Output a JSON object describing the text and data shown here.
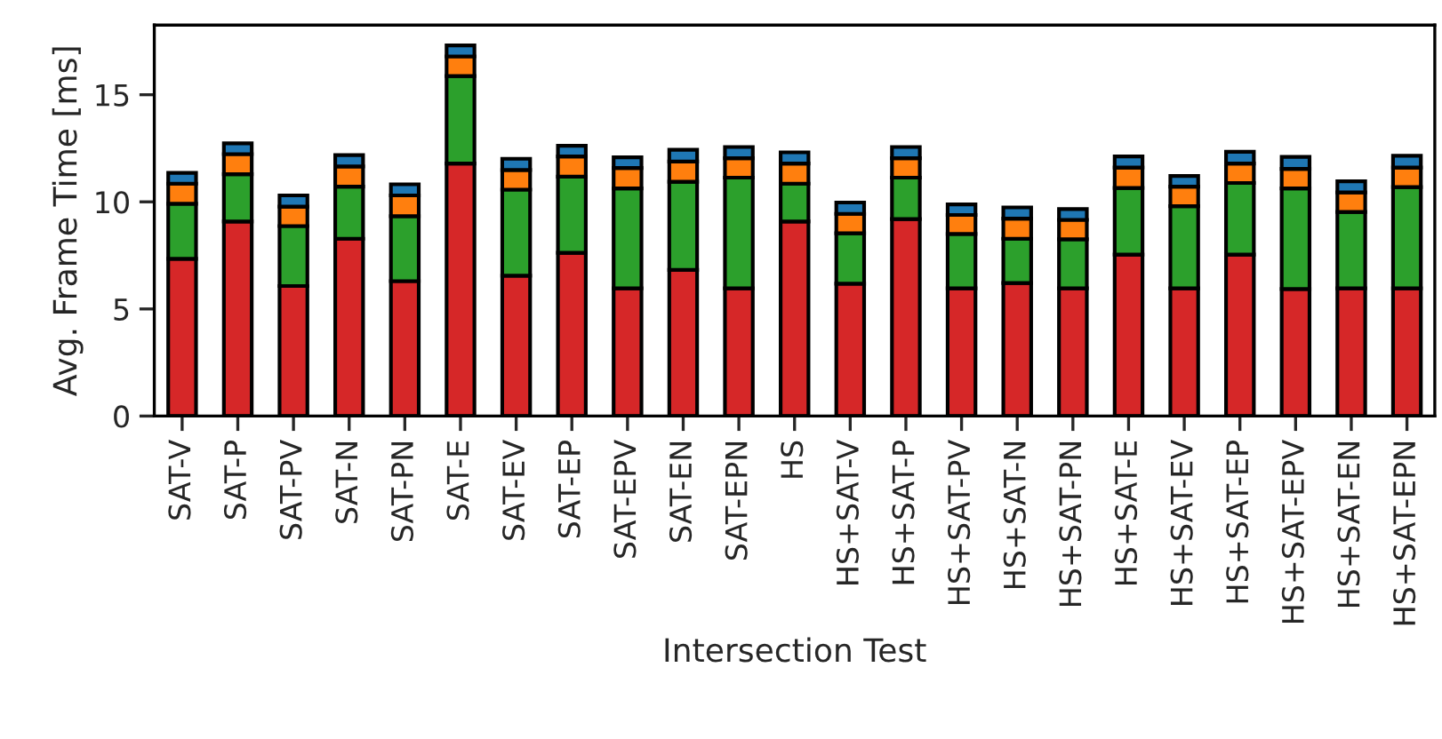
{
  "chart_data": {
    "type": "bar",
    "stacked": true,
    "xlabel": "Intersection Test",
    "ylabel": "Avg. Frame Time [ms]",
    "categories": [
      "SAT-V",
      "SAT-P",
      "SAT-PV",
      "SAT-N",
      "SAT-PN",
      "SAT-E",
      "SAT-EV",
      "SAT-EP",
      "SAT-EPV",
      "SAT-EN",
      "SAT-EPN",
      "HS",
      "HS+SAT-V",
      "HS+SAT-P",
      "HS+SAT-PV",
      "HS+SAT-N",
      "HS+SAT-PN",
      "HS+SAT-E",
      "HS+SAT-EV",
      "HS+SAT-EP",
      "HS+SAT-EPV",
      "HS+SAT-EN",
      "HS+SAT-EPN"
    ],
    "series": [
      {
        "color": "#d62728",
        "values": [
          7.34,
          9.08,
          6.07,
          8.28,
          6.3,
          11.79,
          6.55,
          7.62,
          5.96,
          6.82,
          5.96,
          9.08,
          6.18,
          9.2,
          5.96,
          6.21,
          5.96,
          7.54,
          5.96,
          7.54,
          5.93,
          5.96,
          5.96
        ]
      },
      {
        "color": "#2ca02c",
        "values": [
          2.57,
          2.21,
          2.8,
          2.43,
          3.03,
          4.08,
          4.02,
          3.56,
          4.67,
          4.12,
          5.17,
          1.77,
          2.35,
          1.93,
          2.54,
          2.07,
          2.29,
          3.11,
          3.84,
          3.34,
          4.7,
          3.57,
          4.73
        ]
      },
      {
        "color": "#ff7f0e",
        "values": [
          0.94,
          0.94,
          0.91,
          0.94,
          0.97,
          0.92,
          0.92,
          0.94,
          0.95,
          0.94,
          0.91,
          0.94,
          0.91,
          0.91,
          0.89,
          0.94,
          0.91,
          0.95,
          0.91,
          0.91,
          0.91,
          0.91,
          0.91
        ]
      },
      {
        "color": "#1f77b4",
        "values": [
          0.5,
          0.5,
          0.52,
          0.53,
          0.52,
          0.51,
          0.52,
          0.5,
          0.5,
          0.55,
          0.52,
          0.52,
          0.53,
          0.52,
          0.49,
          0.52,
          0.5,
          0.52,
          0.5,
          0.55,
          0.56,
          0.52,
          0.55
        ]
      }
    ],
    "ylim": [
      0,
      18.25
    ],
    "yticks": [
      0,
      5,
      10,
      15
    ],
    "grid": false,
    "legend": false
  }
}
